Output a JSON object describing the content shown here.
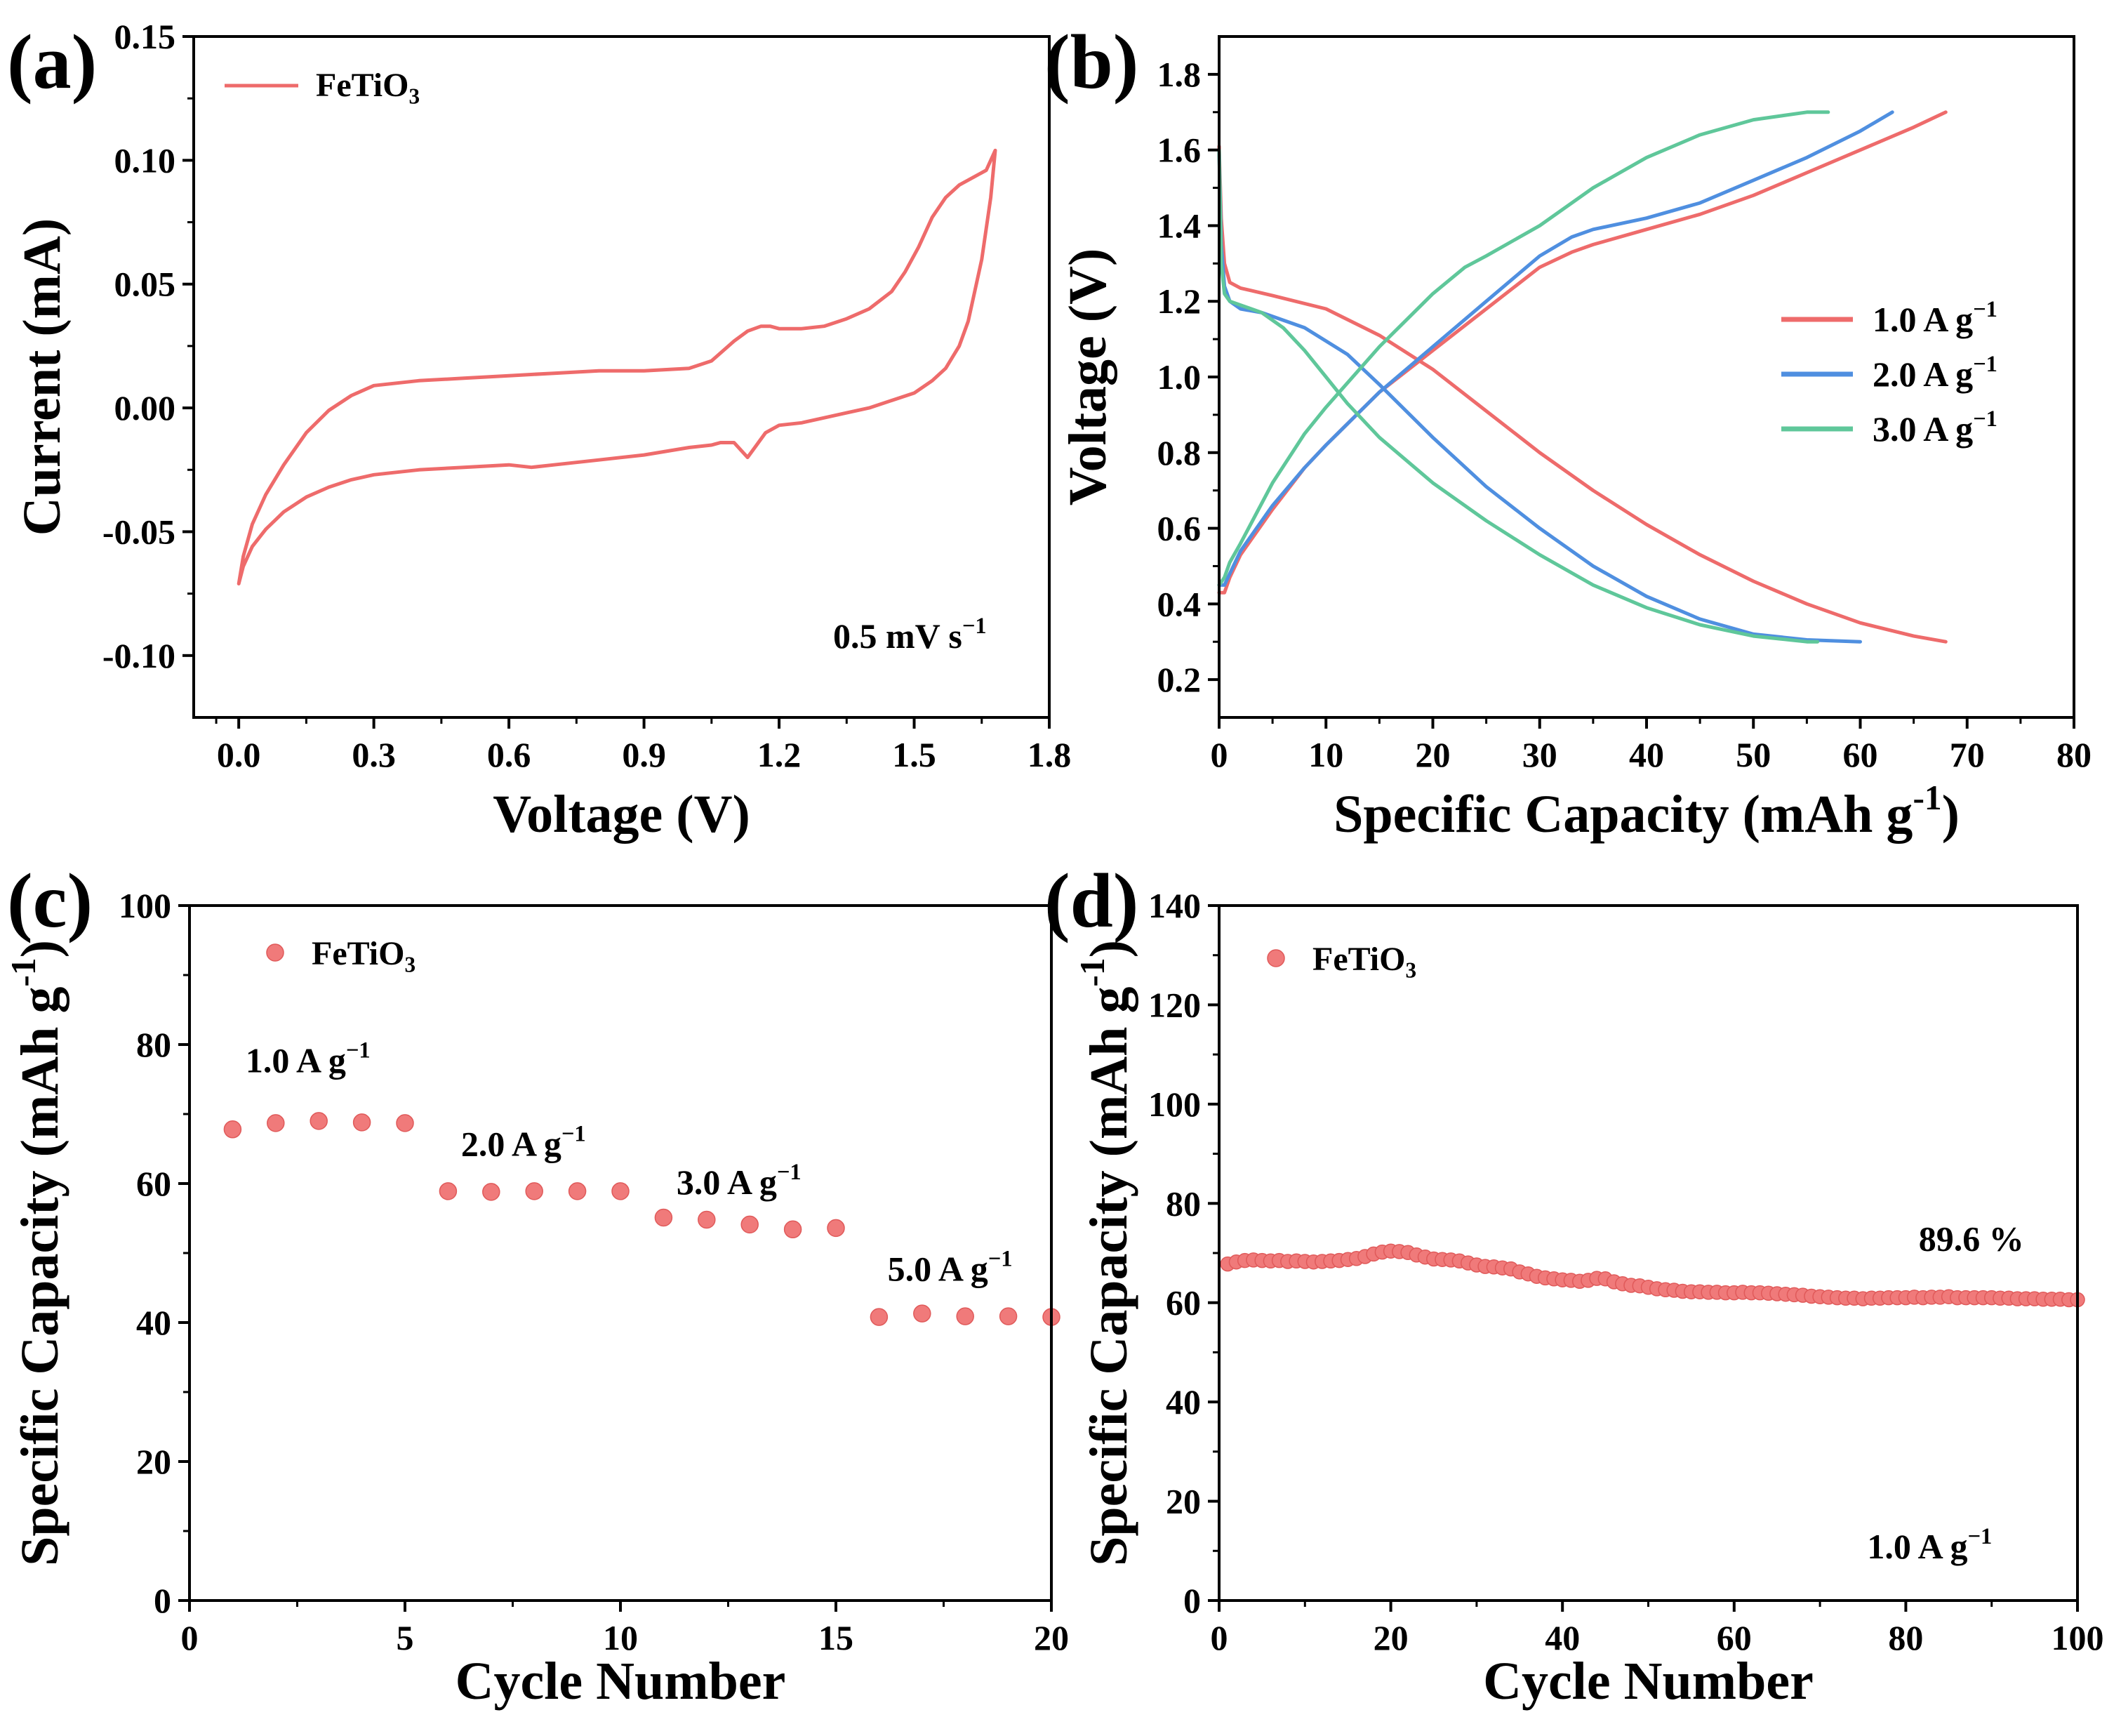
{
  "figure": {
    "colors": {
      "red": "#ee6b6b",
      "blue": "#4f8fe0",
      "green": "#5fc79a",
      "marker": "#f07a7a",
      "axis": "#000000"
    }
  },
  "chart_data": [
    {
      "id": "a",
      "panel_label": "(a)",
      "type": "line",
      "xlabel": "Voltage (V)",
      "ylabel": "Current (mA)",
      "xlim": [
        -0.1,
        1.8
      ],
      "ylim": [
        -0.125,
        0.15
      ],
      "xticks": [
        0.0,
        0.3,
        0.6,
        0.9,
        1.2,
        1.5,
        1.8
      ],
      "xtick_labels": [
        "0.0",
        "0.3",
        "0.6",
        "0.9",
        "1.2",
        "1.5",
        "1.8"
      ],
      "yticks": [
        -0.1,
        -0.05,
        0.0,
        0.05,
        0.1,
        0.15
      ],
      "ytick_labels": [
        "-0.10",
        "-0.05",
        "0.00",
        "0.05",
        "0.10",
        "0.15"
      ],
      "legend": [
        {
          "label": "FeTiO",
          "sub": "3",
          "color": "red"
        }
      ],
      "annotation": {
        "text": "0.5 mV s",
        "sup": "−1",
        "at": [
          1.32,
          -0.097
        ]
      },
      "series": [
        {
          "name": "FeTiO3",
          "color": "red",
          "x": [
            0.0,
            0.01,
            0.03,
            0.06,
            0.1,
            0.15,
            0.2,
            0.25,
            0.3,
            0.4,
            0.5,
            0.6,
            0.7,
            0.8,
            0.9,
            1.0,
            1.05,
            1.1,
            1.13,
            1.16,
            1.18,
            1.2,
            1.25,
            1.3,
            1.35,
            1.4,
            1.45,
            1.48,
            1.51,
            1.54,
            1.57,
            1.6,
            1.63,
            1.66,
            1.68,
            1.67,
            1.65,
            1.62,
            1.6,
            1.57,
            1.54,
            1.5,
            1.45,
            1.4,
            1.35,
            1.3,
            1.25,
            1.2,
            1.17,
            1.15,
            1.13,
            1.1,
            1.07,
            1.05,
            1.0,
            0.9,
            0.8,
            0.7,
            0.65,
            0.6,
            0.5,
            0.4,
            0.3,
            0.25,
            0.2,
            0.15,
            0.1,
            0.06,
            0.03,
            0.01,
            0.0
          ],
          "y": [
            -0.071,
            -0.06,
            -0.047,
            -0.035,
            -0.023,
            -0.01,
            -0.001,
            0.005,
            0.009,
            0.011,
            0.012,
            0.013,
            0.014,
            0.015,
            0.015,
            0.016,
            0.019,
            0.027,
            0.031,
            0.033,
            0.033,
            0.032,
            0.032,
            0.033,
            0.036,
            0.04,
            0.047,
            0.055,
            0.065,
            0.077,
            0.085,
            0.09,
            0.093,
            0.096,
            0.104,
            0.085,
            0.06,
            0.035,
            0.025,
            0.016,
            0.011,
            0.006,
            0.003,
            0.0,
            -0.002,
            -0.004,
            -0.006,
            -0.007,
            -0.01,
            -0.015,
            -0.02,
            -0.014,
            -0.014,
            -0.015,
            -0.016,
            -0.019,
            -0.021,
            -0.023,
            -0.024,
            -0.023,
            -0.024,
            -0.025,
            -0.027,
            -0.029,
            -0.032,
            -0.036,
            -0.042,
            -0.049,
            -0.056,
            -0.064,
            -0.071
          ]
        }
      ]
    },
    {
      "id": "b",
      "panel_label": "(b)",
      "type": "line",
      "xlabel": "Specific Capacity (mAh g",
      "xlabel_sup": "-1",
      "xlabel_close": ")",
      "ylabel": "Voltage (V)",
      "xlim": [
        0,
        80
      ],
      "ylim": [
        0.1,
        1.9
      ],
      "xticks": [
        0,
        10,
        20,
        30,
        40,
        50,
        60,
        70,
        80
      ],
      "xtick_labels": [
        "0",
        "10",
        "20",
        "30",
        "40",
        "50",
        "60",
        "70",
        "80"
      ],
      "yticks": [
        0.2,
        0.4,
        0.6,
        0.8,
        1.0,
        1.2,
        1.4,
        1.6,
        1.8
      ],
      "ytick_labels": [
        "0.2",
        "0.4",
        "0.6",
        "0.8",
        "1.0",
        "1.2",
        "1.4",
        "1.6",
        "1.8"
      ],
      "legend": [
        {
          "label": "1.0 A g",
          "sup": "−1",
          "color": "red"
        },
        {
          "label": "2.0 A g",
          "sup": "−1",
          "color": "blue"
        },
        {
          "label": "3.0 A g",
          "sup": "−1",
          "color": "green"
        }
      ],
      "series": [
        {
          "name": "1.0 A g-1 discharge",
          "color": "red",
          "x": [
            0,
            0.2,
            0.5,
            1,
            2,
            5,
            10,
            15,
            20,
            25,
            30,
            35,
            40,
            45,
            50,
            55,
            60,
            65,
            68
          ],
          "y": [
            1.61,
            1.42,
            1.3,
            1.25,
            1.235,
            1.215,
            1.18,
            1.11,
            1.02,
            0.91,
            0.8,
            0.7,
            0.61,
            0.53,
            0.46,
            0.4,
            0.35,
            0.315,
            0.3
          ]
        },
        {
          "name": "1.0 A g-1 charge",
          "color": "red",
          "x": [
            0,
            0.5,
            1,
            2,
            3,
            5,
            8,
            10,
            15,
            20,
            25,
            30,
            33,
            35,
            40,
            45,
            50,
            55,
            60,
            65,
            68
          ],
          "y": [
            0.43,
            0.43,
            0.47,
            0.53,
            0.57,
            0.65,
            0.76,
            0.82,
            0.96,
            1.07,
            1.18,
            1.29,
            1.33,
            1.35,
            1.39,
            1.43,
            1.48,
            1.54,
            1.6,
            1.66,
            1.7
          ]
        },
        {
          "name": "2.0 A g-1 discharge",
          "color": "blue",
          "x": [
            0,
            0.2,
            0.5,
            1,
            2,
            4,
            8,
            12,
            15,
            20,
            25,
            30,
            35,
            40,
            45,
            50,
            55,
            60
          ],
          "y": [
            1.6,
            1.35,
            1.24,
            1.2,
            1.18,
            1.17,
            1.13,
            1.06,
            0.98,
            0.84,
            0.71,
            0.6,
            0.5,
            0.42,
            0.36,
            0.32,
            0.305,
            0.3
          ]
        },
        {
          "name": "2.0 A g-1 charge",
          "color": "blue",
          "x": [
            0,
            0.5,
            1,
            2,
            3,
            5,
            8,
            10,
            15,
            20,
            25,
            30,
            33,
            35,
            40,
            45,
            50,
            55,
            60,
            63
          ],
          "y": [
            0.45,
            0.45,
            0.48,
            0.54,
            0.58,
            0.66,
            0.76,
            0.82,
            0.96,
            1.08,
            1.2,
            1.32,
            1.37,
            1.39,
            1.42,
            1.46,
            1.52,
            1.58,
            1.65,
            1.7
          ]
        },
        {
          "name": "3.0 A g-1 discharge",
          "color": "green",
          "x": [
            0,
            0.2,
            0.5,
            1,
            2,
            4,
            6,
            8,
            10,
            12,
            15,
            20,
            25,
            30,
            35,
            40,
            45,
            50,
            55,
            56
          ],
          "y": [
            1.6,
            1.3,
            1.22,
            1.2,
            1.19,
            1.17,
            1.13,
            1.07,
            1.0,
            0.93,
            0.84,
            0.72,
            0.62,
            0.53,
            0.45,
            0.39,
            0.345,
            0.315,
            0.3,
            0.3
          ]
        },
        {
          "name": "3.0 A g-1 charge",
          "color": "green",
          "x": [
            0,
            0.5,
            1,
            2,
            5,
            8,
            10,
            15,
            20,
            23,
            25,
            30,
            35,
            40,
            45,
            50,
            55,
            57
          ],
          "y": [
            0.45,
            0.47,
            0.51,
            0.56,
            0.72,
            0.85,
            0.92,
            1.08,
            1.22,
            1.29,
            1.32,
            1.4,
            1.5,
            1.58,
            1.64,
            1.68,
            1.7,
            1.7
          ]
        }
      ]
    },
    {
      "id": "c",
      "panel_label": "(c)",
      "type": "scatter",
      "xlabel": "Cycle Number",
      "ylabel": "Specific Capacity (mAh g",
      "ylabel_sup": "-1",
      "ylabel_close": ")",
      "xlim": [
        0,
        20
      ],
      "ylim": [
        0,
        100
      ],
      "xticks": [
        0,
        5,
        10,
        15,
        20
      ],
      "xtick_labels": [
        "0",
        "5",
        "10",
        "15",
        "20"
      ],
      "yticks": [
        0,
        20,
        40,
        60,
        80,
        100
      ],
      "ytick_labels": [
        "0",
        "20",
        "40",
        "60",
        "80",
        "100"
      ],
      "legend": [
        {
          "label": "FeTiO",
          "sub": "3",
          "color": "marker"
        }
      ],
      "annotations": [
        {
          "text": "1.0 A g",
          "sup": "−1",
          "at": [
            1.3,
            76
          ]
        },
        {
          "text": "2.0 A g",
          "sup": "−1",
          "at": [
            6.3,
            64
          ]
        },
        {
          "text": "3.0 A g",
          "sup": "−1",
          "at": [
            11.3,
            58.5
          ]
        },
        {
          "text": "5.0 A g",
          "sup": "−1",
          "at": [
            16.2,
            46
          ]
        }
      ],
      "series": [
        {
          "name": "FeTiO3",
          "color": "marker",
          "x": [
            1,
            2,
            3,
            4,
            5,
            6,
            7,
            8,
            9,
            10,
            11,
            12,
            13,
            14,
            15,
            16,
            17,
            18,
            19,
            20
          ],
          "y": [
            67.8,
            68.7,
            69.0,
            68.8,
            68.7,
            58.9,
            58.8,
            58.9,
            58.9,
            58.9,
            55.1,
            54.8,
            54.1,
            53.4,
            53.6,
            40.8,
            41.3,
            40.9,
            40.9,
            40.8
          ]
        }
      ]
    },
    {
      "id": "d",
      "panel_label": "(d)",
      "type": "scatter",
      "xlabel": "Cycle Number",
      "ylabel": "Specific Capacity (mAh g",
      "ylabel_sup": "-1",
      "ylabel_close": ")",
      "xlim": [
        0,
        100
      ],
      "ylim": [
        0,
        140
      ],
      "xticks": [
        0,
        20,
        40,
        60,
        80,
        100
      ],
      "xtick_labels": [
        "0",
        "20",
        "40",
        "60",
        "80",
        "100"
      ],
      "yticks": [
        0,
        20,
        40,
        60,
        80,
        100,
        120,
        140
      ],
      "ytick_labels": [
        "0",
        "20",
        "40",
        "60",
        "80",
        "100",
        "120",
        "140"
      ],
      "legend": [
        {
          "label": "FeTiO",
          "sub": "3",
          "color": "marker"
        }
      ],
      "annotations": [
        {
          "text": "89.6 %",
          "at": [
            81.5,
            70.5
          ],
          "color": "red"
        },
        {
          "text": "1.0 A g",
          "sup": "−1",
          "at": [
            75.5,
            8.5
          ]
        }
      ],
      "series": [
        {
          "name": "FeTiO3",
          "color": "marker",
          "x": [
            1,
            2,
            3,
            4,
            5,
            6,
            7,
            8,
            9,
            10,
            11,
            12,
            13,
            14,
            15,
            16,
            17,
            18,
            19,
            20,
            21,
            22,
            23,
            24,
            25,
            26,
            27,
            28,
            29,
            30,
            31,
            32,
            33,
            34,
            35,
            36,
            37,
            38,
            39,
            40,
            41,
            42,
            43,
            44,
            45,
            46,
            47,
            48,
            49,
            50,
            51,
            52,
            53,
            54,
            55,
            56,
            57,
            58,
            59,
            60,
            61,
            62,
            63,
            64,
            65,
            66,
            67,
            68,
            69,
            70,
            71,
            72,
            73,
            74,
            75,
            76,
            77,
            78,
            79,
            80,
            81,
            82,
            83,
            84,
            85,
            86,
            87,
            88,
            89,
            90,
            91,
            92,
            93,
            94,
            95,
            96,
            97,
            98,
            99,
            100
          ],
          "y": [
            67.8,
            68.2,
            68.5,
            68.6,
            68.5,
            68.4,
            68.5,
            68.3,
            68.4,
            68.3,
            68.2,
            68.3,
            68.4,
            68.5,
            68.7,
            68.9,
            69.3,
            69.8,
            70.2,
            70.4,
            70.3,
            70.1,
            69.6,
            69.2,
            68.8,
            68.7,
            68.6,
            68.4,
            68.0,
            67.6,
            67.3,
            67.2,
            67.0,
            66.8,
            66.2,
            65.8,
            65.3,
            65.0,
            64.8,
            64.6,
            64.5,
            64.3,
            64.5,
            64.9,
            64.8,
            64.2,
            63.8,
            63.5,
            63.4,
            63.1,
            62.8,
            62.6,
            62.5,
            62.3,
            62.2,
            62.2,
            62.1,
            62.1,
            62.0,
            62.0,
            62.1,
            62.0,
            62.0,
            61.9,
            61.8,
            61.7,
            61.6,
            61.5,
            61.3,
            61.2,
            61.1,
            61.0,
            60.9,
            60.9,
            60.8,
            60.9,
            60.9,
            61.0,
            61.0,
            61.0,
            61.1,
            61.0,
            61.1,
            61.1,
            61.2,
            61.0,
            61.0,
            61.0,
            61.0,
            61.0,
            60.9,
            60.9,
            60.8,
            60.8,
            60.8,
            60.7,
            60.7,
            60.7,
            60.6,
            60.6
          ]
        }
      ]
    }
  ]
}
